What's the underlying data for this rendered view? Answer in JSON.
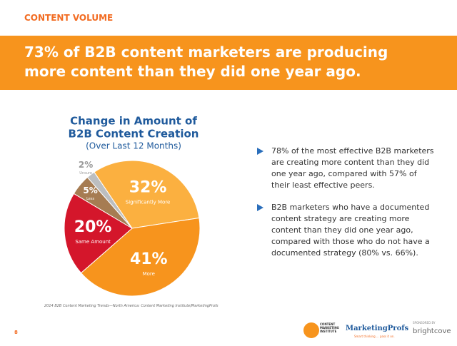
{
  "header": {
    "section": "CONTENT VOLUME",
    "headline": "73% of B2B content marketers are producing more content than they did one year ago."
  },
  "chart_data": {
    "type": "pie",
    "title": [
      "Change in Amount of",
      "B2B Content Creation"
    ],
    "subtitle": "(Over Last 12 Months)",
    "categories": [
      "Significantly More",
      "More",
      "Same Amount",
      "Less",
      "Unsure"
    ],
    "values": [
      32,
      41,
      20,
      5,
      2
    ],
    "value_labels": [
      "32%",
      "41%",
      "20%",
      "5%",
      "2%"
    ],
    "colors": [
      "#fbb040",
      "#f7941d",
      "#d4162b",
      "#a67c52",
      "#bcbec0"
    ],
    "source": "2014 B2B Content Marketing Trends—North America: Content Marketing Institute/MarketingProfs"
  },
  "bullets": [
    "78% of the most effective B2B marketers are creating more content than they did one year ago, compared with 57% of their least effective peers.",
    "B2B marketers who have a documented content strategy are creating more content than they did one year ago, compared with those who do not have a documented strategy (80% vs. 66%)."
  ],
  "footer": {
    "page": "8",
    "logos": [
      "CONTENT MARKETING INSTITUTE",
      "MarketingProfs",
      "Smart thinking ... pass it on.",
      "SPONSORED BY",
      "brightcove"
    ]
  }
}
